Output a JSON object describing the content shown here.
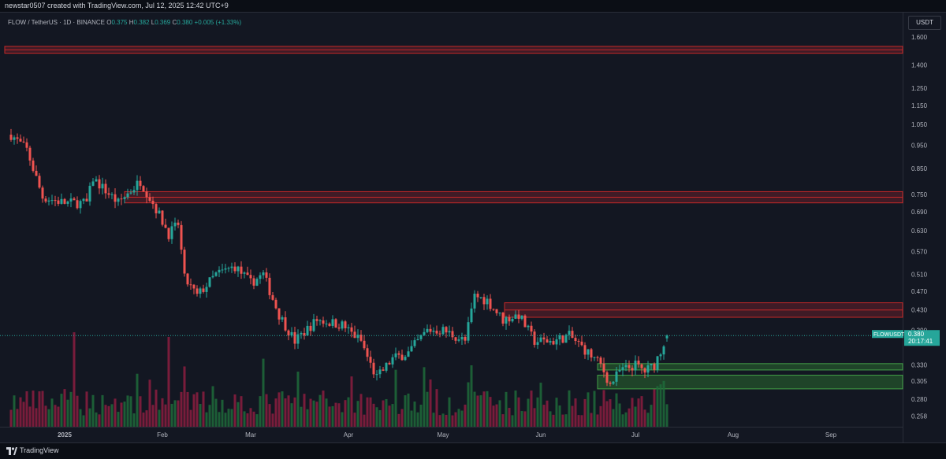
{
  "header": {
    "attribution": "newstar0507 created with TradingView.com, Jul 12, 2025 12:42 UTC+9"
  },
  "legend": {
    "symbol": "FLOW / TetherUS · 1D · BINANCE",
    "o_label": "O",
    "o": "0.375",
    "h_label": "H",
    "h": "0.382",
    "l_label": "L",
    "l": "0.369",
    "c_label": "C",
    "c": "0.380",
    "change": "+0.005 (+1.33%)"
  },
  "price_scale": {
    "currency": "USDT",
    "ticks": [
      "1.600",
      "1.400",
      "1.250",
      "1.150",
      "1.050",
      "0.950",
      "0.850",
      "0.750",
      "0.690",
      "0.630",
      "0.570",
      "0.510",
      "0.470",
      "0.430",
      "0.390",
      "0.330",
      "0.305",
      "0.280",
      "0.258"
    ]
  },
  "price_tag": {
    "symbol": "FLOWUSDT",
    "price": "0.380",
    "countdown": "20:17:41"
  },
  "time_axis": {
    "labels": [
      "2025",
      "Feb",
      "Mar",
      "Apr",
      "May",
      "Jun",
      "Jul",
      "Aug",
      "Sep"
    ]
  },
  "footer": {
    "brand": "TradingView"
  },
  "colors": {
    "up": "#26a69a",
    "down": "#ef5350",
    "supply_zone": "#b22833",
    "demand_zone": "#2e7d32",
    "background": "#131722"
  },
  "chart_data": {
    "type": "candlestick",
    "symbol": "FLOW / TetherUS",
    "interval": "1D",
    "exchange": "BINANCE",
    "scale": "log",
    "ylim": [
      0.245,
      1.8
    ],
    "last": {
      "open": 0.375,
      "high": 0.382,
      "low": 0.369,
      "close": 0.38,
      "change": 0.005,
      "change_pct": 1.33
    },
    "series": [
      {
        "name": "close_anchors",
        "points": [
          [
            "2024-12-15",
            1.0
          ],
          [
            "2024-12-20",
            0.93
          ],
          [
            "2024-12-25",
            0.74
          ],
          [
            "2025-01-01",
            0.72
          ],
          [
            "2025-01-08",
            0.72
          ],
          [
            "2025-01-10",
            0.81
          ],
          [
            "2025-01-18",
            0.72
          ],
          [
            "2025-01-25",
            0.8
          ],
          [
            "2025-01-30",
            0.7
          ],
          [
            "2025-02-03",
            0.62
          ],
          [
            "2025-02-06",
            0.65
          ],
          [
            "2025-02-08",
            0.5
          ],
          [
            "2025-02-12",
            0.46
          ],
          [
            "2025-02-18",
            0.51
          ],
          [
            "2025-02-24",
            0.53
          ],
          [
            "2025-03-01",
            0.49
          ],
          [
            "2025-03-05",
            0.51
          ],
          [
            "2025-03-10",
            0.42
          ],
          [
            "2025-03-15",
            0.37
          ],
          [
            "2025-03-22",
            0.41
          ],
          [
            "2025-03-30",
            0.4
          ],
          [
            "2025-04-05",
            0.37
          ],
          [
            "2025-04-08",
            0.33
          ],
          [
            "2025-04-10",
            0.31
          ],
          [
            "2025-04-15",
            0.34
          ],
          [
            "2025-04-20",
            0.35
          ],
          [
            "2025-04-26",
            0.39
          ],
          [
            "2025-05-01",
            0.39
          ],
          [
            "2025-05-08",
            0.37
          ],
          [
            "2025-05-11",
            0.46
          ],
          [
            "2025-05-15",
            0.45
          ],
          [
            "2025-05-20",
            0.41
          ],
          [
            "2025-05-25",
            0.42
          ],
          [
            "2025-05-30",
            0.37
          ],
          [
            "2025-06-05",
            0.37
          ],
          [
            "2025-06-10",
            0.38
          ],
          [
            "2025-06-14",
            0.36
          ],
          [
            "2025-06-20",
            0.33
          ],
          [
            "2025-06-23",
            0.3
          ],
          [
            "2025-06-26",
            0.32
          ],
          [
            "2025-07-01",
            0.33
          ],
          [
            "2025-07-04",
            0.32
          ],
          [
            "2025-07-07",
            0.33
          ],
          [
            "2025-07-11",
            0.38
          ]
        ]
      }
    ],
    "volume_spikes": [
      [
        "2025-01-04",
        1.0
      ],
      [
        "2025-02-03",
        0.95
      ],
      [
        "2025-03-05",
        0.72
      ],
      [
        "2025-05-10",
        0.65
      ]
    ],
    "supply_zones": [
      [
        1.48,
        1.53
      ],
      [
        0.72,
        0.76
      ],
      [
        0.415,
        0.445
      ]
    ],
    "demand_zones": [
      [
        0.322,
        0.332
      ],
      [
        0.294,
        0.314
      ]
    ]
  }
}
